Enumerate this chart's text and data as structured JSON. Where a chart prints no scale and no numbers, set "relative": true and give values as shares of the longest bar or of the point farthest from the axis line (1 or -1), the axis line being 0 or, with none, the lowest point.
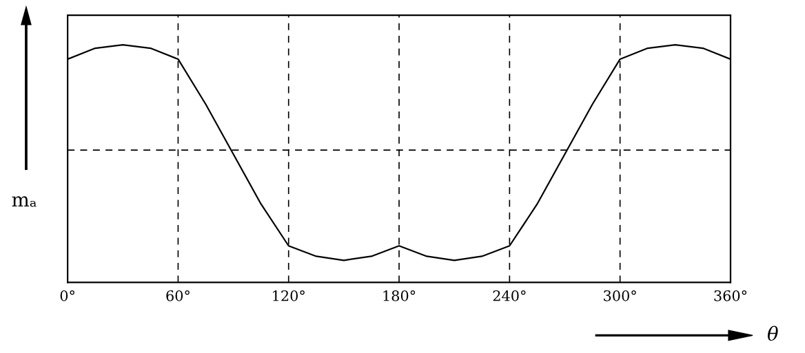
{
  "chart_data": {
    "type": "line",
    "relative": true,
    "xlabel": "θ",
    "ylabel": "mₐ",
    "x": [
      0,
      15,
      30,
      45,
      60,
      75,
      90,
      105,
      120,
      135,
      150,
      165,
      180,
      195,
      210,
      225,
      240,
      255,
      270,
      285,
      300,
      315,
      330,
      345,
      360
    ],
    "series": [
      {
        "color": "#000000",
        "values": [
          0.94,
          0.986,
          1.0,
          0.986,
          0.94,
          0.75,
          0.54,
          0.33,
          0.154,
          0.11,
          0.093,
          0.11,
          0.154,
          0.11,
          0.093,
          0.11,
          0.154,
          0.33,
          0.54,
          0.75,
          0.94,
          0.986,
          1.0,
          0.986,
          0.94
        ]
      }
    ],
    "xlim": [
      0,
      360
    ],
    "xticks": [
      {
        "value": 0,
        "label": "0°"
      },
      {
        "value": 60,
        "label": "60°"
      },
      {
        "value": 120,
        "label": "120°"
      },
      {
        "value": 180,
        "label": "180°"
      },
      {
        "value": 240,
        "label": "240°"
      },
      {
        "value": 300,
        "label": "300°"
      },
      {
        "value": 360,
        "label": "360°"
      }
    ],
    "grid": "x",
    "marker": "none",
    "line_style": "solid",
    "ref_lines": [
      {
        "axis": "y",
        "value": 0.557,
        "line_style": "dashed",
        "color": "#000000"
      }
    ]
  }
}
